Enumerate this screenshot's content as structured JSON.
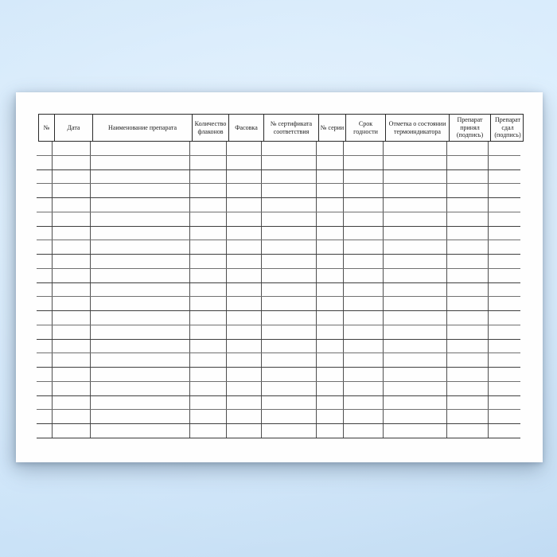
{
  "table": {
    "columns": [
      "№",
      "Дата",
      "Наименование препарата",
      "Количество\nфлаконов",
      "Фасовка",
      "№ сертификата\nсоответствия",
      "№ серии",
      "Срок\nгодности",
      "Отметка о состоянии\nтермоиндикатора",
      "Препарат\nпринял\n(подпись)",
      "Препарат\nсдал\n(подпись)"
    ],
    "row_count": 21,
    "cell_value": ""
  },
  "colors": {
    "backdrop_blue": "#d2e8fb",
    "page_background": "#fefefe",
    "header_border": "#2a2a2a",
    "grid_line_dark": "#3e3e3e",
    "grid_line_light": "#707070",
    "text": "#1b1b1b"
  }
}
